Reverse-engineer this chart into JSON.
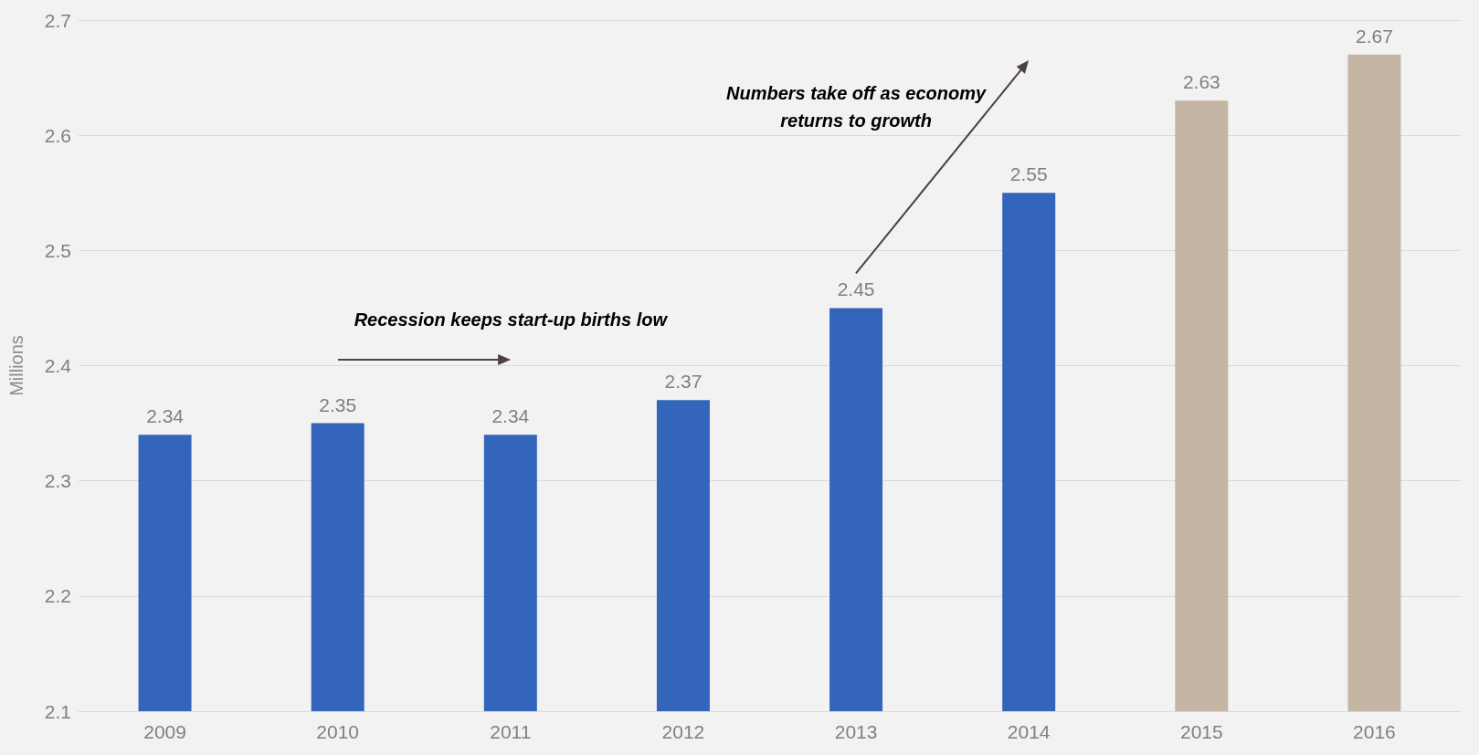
{
  "chart_data": {
    "type": "bar",
    "ylabel": "Millions",
    "categories": [
      "2009",
      "2010",
      "2011",
      "2012",
      "2013",
      "2014",
      "2015",
      "2016"
    ],
    "values": [
      2.34,
      2.35,
      2.34,
      2.37,
      2.45,
      2.55,
      2.63,
      2.67
    ],
    "colors": [
      "#3366bb",
      "#3366bb",
      "#3366bb",
      "#3366bb",
      "#3366bb",
      "#3366bb",
      "#c4b5a5",
      "#c4b5a5"
    ],
    "ylim": [
      2.1,
      2.7
    ],
    "yticks": [
      2.1,
      2.2,
      2.3,
      2.4,
      2.5,
      2.6,
      2.7
    ],
    "grid": "y",
    "data_labels": true,
    "annotations": [
      "Recession keeps start-up births low",
      "Numbers take off as economy returns to growth"
    ]
  }
}
